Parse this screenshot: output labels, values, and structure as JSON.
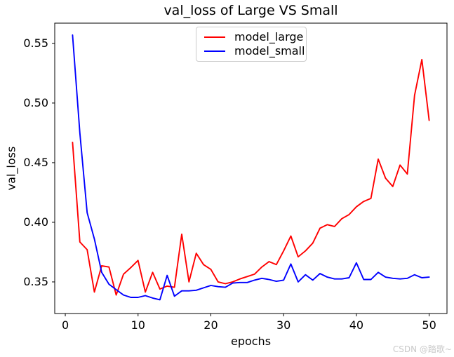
{
  "watermark": "CSDN @踏歌~",
  "chart_data": {
    "type": "line",
    "title": "val_loss of Large VS Small",
    "xlabel": "epochs",
    "ylabel": "val_loss",
    "grid": false,
    "legend_position": "upper center",
    "axis_color": "#000000",
    "xlim": [
      -1.45,
      52.45
    ],
    "ylim": [
      0.3235,
      0.567
    ],
    "x_ticks": [
      0,
      10,
      20,
      30,
      40,
      50
    ],
    "y_ticks": [
      0.35,
      0.4,
      0.45,
      0.5,
      0.55
    ],
    "x": [
      1,
      2,
      3,
      4,
      5,
      6,
      7,
      8,
      9,
      10,
      11,
      12,
      13,
      14,
      15,
      16,
      17,
      18,
      19,
      20,
      21,
      22,
      23,
      24,
      25,
      26,
      27,
      28,
      29,
      30,
      31,
      32,
      33,
      34,
      35,
      36,
      37,
      38,
      39,
      40,
      41,
      42,
      43,
      44,
      45,
      46,
      47,
      48,
      49,
      50
    ],
    "series": [
      {
        "name": "model_large",
        "color": "#ff0000",
        "values": [
          0.467,
          0.3835,
          0.377,
          0.3415,
          0.3635,
          0.3625,
          0.339,
          0.3565,
          0.362,
          0.368,
          0.3415,
          0.358,
          0.344,
          0.3465,
          0.3455,
          0.39,
          0.35,
          0.374,
          0.3645,
          0.3605,
          0.35,
          0.3485,
          0.35,
          0.3525,
          0.3545,
          0.3565,
          0.3625,
          0.367,
          0.3645,
          0.376,
          0.3885,
          0.371,
          0.376,
          0.3825,
          0.395,
          0.398,
          0.3965,
          0.403,
          0.4065,
          0.413,
          0.4175,
          0.42,
          0.453,
          0.437,
          0.43,
          0.448,
          0.4405,
          0.5065,
          0.5365,
          0.4855
        ]
      },
      {
        "name": "model_small",
        "color": "#0000ff",
        "values": [
          0.557,
          0.475,
          0.408,
          0.386,
          0.358,
          0.348,
          0.3435,
          0.339,
          0.337,
          0.337,
          0.3385,
          0.3365,
          0.335,
          0.3555,
          0.338,
          0.3425,
          0.3425,
          0.343,
          0.345,
          0.347,
          0.346,
          0.3455,
          0.349,
          0.3495,
          0.3495,
          0.3515,
          0.353,
          0.352,
          0.3505,
          0.3515,
          0.365,
          0.35,
          0.356,
          0.3515,
          0.357,
          0.354,
          0.3525,
          0.3525,
          0.3535,
          0.366,
          0.352,
          0.352,
          0.358,
          0.354,
          0.353,
          0.3525,
          0.353,
          0.356,
          0.3535,
          0.354
        ]
      }
    ]
  }
}
